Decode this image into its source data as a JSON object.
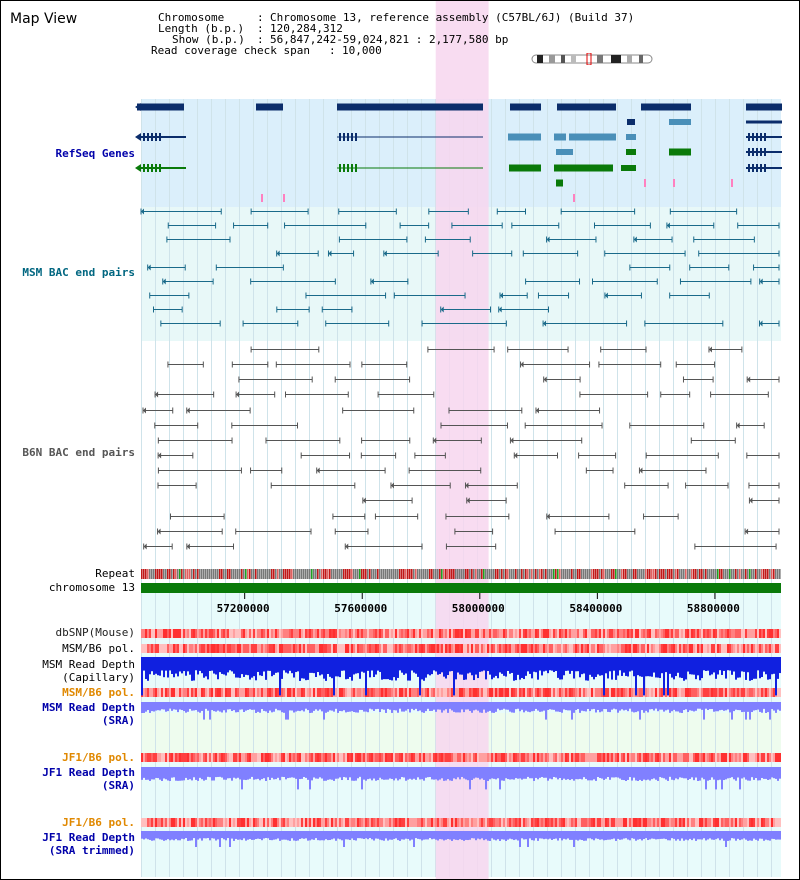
{
  "app_title": "Map View",
  "info": {
    "chromosome_key": "Chromosome",
    "chromosome_val": "Chromosome 13, reference assembly (C57BL/6J) (Build 37)",
    "length_key": "Length (b.p.)",
    "length_val": "120,284,312",
    "show_key": "Show (b.p.)",
    "show_val": "56,847,242-59,024,821 : 2,177,580 bp",
    "coverage_key": "Read coverage check span",
    "coverage_val": "10,000"
  },
  "tracks": {
    "refseq": "RefSeq Genes",
    "msm_bac": "MSM BAC end pairs",
    "b6n_bac": "B6N BAC end pairs",
    "repeat": "Repeat",
    "chromosome": "chromosome 13",
    "dbsnp": "dbSNP(Mouse)",
    "msm_b6_pol_1": "MSM/B6 pol.",
    "msm_depth_cap_1": "MSM Read Depth",
    "msm_depth_cap_2": "(Capillary)",
    "msm_b6_pol_2": "MSM/B6 pol.",
    "msm_depth_sra_1": "MSM Read Depth",
    "msm_depth_sra_2": "(SRA)",
    "jf1_b6_pol_1": "JF1/B6 pol.",
    "jf1_depth_1": "JF1 Read Depth",
    "jf1_depth_2": "(SRA)",
    "jf1_b6_pol_2": "JF1/B6 pol.",
    "jf1_trim_1": "JF1 Read Depth",
    "jf1_trim_2": "(SRA trimmed)"
  },
  "axis": {
    "range_bp": [
      56847242,
      59024821
    ],
    "ticks": [
      {
        "label": "57200000",
        "value": 57200000
      },
      {
        "label": "57600000",
        "value": 57600000
      },
      {
        "label": "58000000",
        "value": 58000000
      },
      {
        "label": "58400000",
        "value": 58400000
      },
      {
        "label": "58800000",
        "value": 58800000
      }
    ]
  },
  "highlight_bp": [
    57850000,
    58030000
  ],
  "colors": {
    "refseq_bg": "#dbeffb",
    "bac_bg": "#e8f8f8",
    "highlight": "#f7d6ef",
    "navy": "#0b2d6b",
    "steel": "#4a8fb8",
    "green": "#0a7a0a",
    "teal": "#1a6a8a",
    "gray": "#555555",
    "blue_depth": "#1020e0",
    "lav_depth": "#8080ff",
    "label_blue": "#0000aa",
    "label_orange": "#e08800",
    "label_teal": "#006680"
  }
}
